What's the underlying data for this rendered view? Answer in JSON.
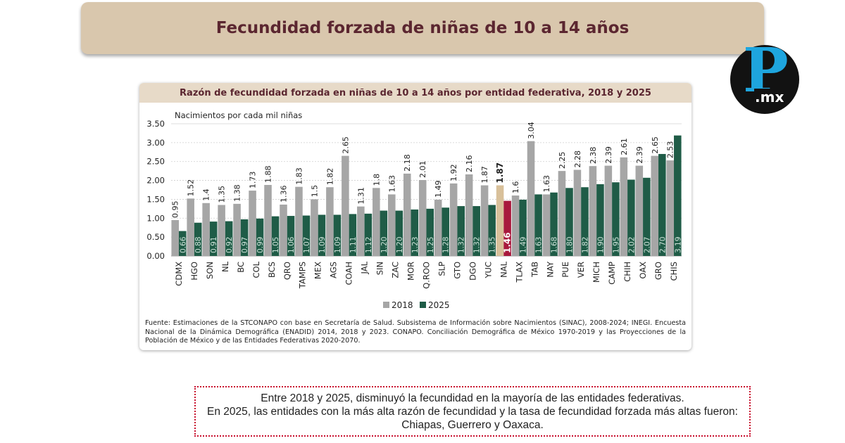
{
  "header": {
    "title": "Fecundidad forzada de niñas de 10 a 14 años"
  },
  "logo": {
    "letter": "P",
    "suffix": ".mx",
    "colors": {
      "background": "#121212",
      "letter": "#1ea5de",
      "suffix": "#ffffff"
    }
  },
  "chart_data": {
    "type": "bar",
    "title": "Razón de fecundidad forzada en niñas de 10 a 14 años por entidad federativa, 2018 y 2025",
    "ylabel": "Nacimientos por cada mil niñas",
    "xlabel": "",
    "ylim": [
      0,
      3.5
    ],
    "yticks": [
      "0.00",
      "0.50",
      "1.00",
      "1.50",
      "2.00",
      "2.50",
      "3.00",
      "3.50"
    ],
    "grid": true,
    "legend_position": "bottom-center",
    "categories": [
      "CDMX",
      "HGO",
      "SON",
      "NL",
      "BC",
      "COL",
      "BCS",
      "QRO",
      "TAMPS",
      "MEX",
      "AGS",
      "COAH",
      "JAL",
      "SIN",
      "ZAC",
      "MOR",
      "Q.ROO",
      "SLP",
      "GTO",
      "DGO",
      "YUC",
      "NAL",
      "TLAX",
      "TAB",
      "NAY",
      "PUE",
      "VER",
      "MICH",
      "CAMP",
      "CHIH",
      "OAX",
      "GRO",
      "CHIS"
    ],
    "series": [
      {
        "name": "2018",
        "color": "#a6a6a6",
        "values": [
          0.95,
          1.52,
          1.4,
          1.35,
          1.38,
          1.73,
          1.88,
          1.36,
          1.83,
          1.5,
          1.82,
          2.65,
          1.31,
          1.8,
          1.63,
          2.18,
          2.01,
          1.49,
          1.92,
          2.16,
          1.87,
          1.87,
          1.6,
          3.04,
          1.63,
          2.25,
          2.28,
          2.38,
          2.39,
          2.61,
          2.39,
          2.65,
          2.53
        ],
        "labels": [
          "0.95",
          "1.52",
          "1.4",
          "1.35",
          "1.38",
          "1.73",
          "1.88",
          "1.36",
          "1.83",
          "1.5",
          "1.82",
          "2.65",
          "1.31",
          "1.8",
          "1.63",
          "2.18",
          "2.01",
          "1.49",
          "1.92",
          "2.16",
          "1.87",
          "1.87",
          "1.6",
          "3.04",
          "1.63",
          "2.25",
          "2.28",
          "2.38",
          "2.39",
          "2.61",
          "2.39",
          "2.65",
          "2.53"
        ]
      },
      {
        "name": "2025",
        "color": "#1f5c47",
        "values": [
          0.66,
          0.88,
          0.91,
          0.92,
          0.97,
          0.99,
          1.05,
          1.06,
          1.07,
          1.09,
          1.09,
          1.11,
          1.12,
          1.2,
          1.2,
          1.23,
          1.25,
          1.28,
          1.32,
          1.32,
          1.35,
          1.46,
          1.49,
          1.63,
          1.68,
          1.8,
          1.82,
          1.9,
          1.95,
          2.02,
          2.07,
          2.7,
          3.19
        ],
        "labels": [
          "0.66",
          "0.88",
          "0.91",
          "0.92",
          "0.97",
          "0.99",
          "1.05",
          "1.06",
          "1.07",
          "1.09",
          "1.09",
          "1.11",
          "1.12",
          "1.20",
          "1.20",
          "1.23",
          "1.25",
          "1.28",
          "1.32",
          "1.32",
          "1.35",
          "1.46",
          "1.49",
          "1.63",
          "1.68",
          "1.80",
          "1.82",
          "1.90",
          "1.95",
          "2.02",
          "2.07",
          "2.70",
          "3.19"
        ]
      }
    ],
    "highlight": {
      "category": "NAL",
      "color_2018": "#d8c09a",
      "color_2025": "#a8193d"
    },
    "legend": [
      "2018",
      "2025"
    ]
  },
  "source_text": "Fuente: Estimaciones de la STCONAPO con base en Secretaría de Salud. Subsistema de Información sobre Nacimientos (SINAC), 2008-2024; INEGI. Encuesta Nacional de la Dinámica Demográfica (ENADID) 2014, 2018 y 2023. CONAPO. Conciliación Demográfica de México 1970-2019 y las Proyecciones de la Población de México y de las Entidades Federativas 2020-2070.",
  "note": {
    "line1": "Entre 2018 y 2025, disminuyó la fecundidad en la mayoría de las entidades federativas.",
    "line2": "En 2025, las entidades con la más alta razón de fecundidad y la tasa de fecundidad forzada más altas fueron: Chiapas, Guerrero y Oaxaca."
  }
}
